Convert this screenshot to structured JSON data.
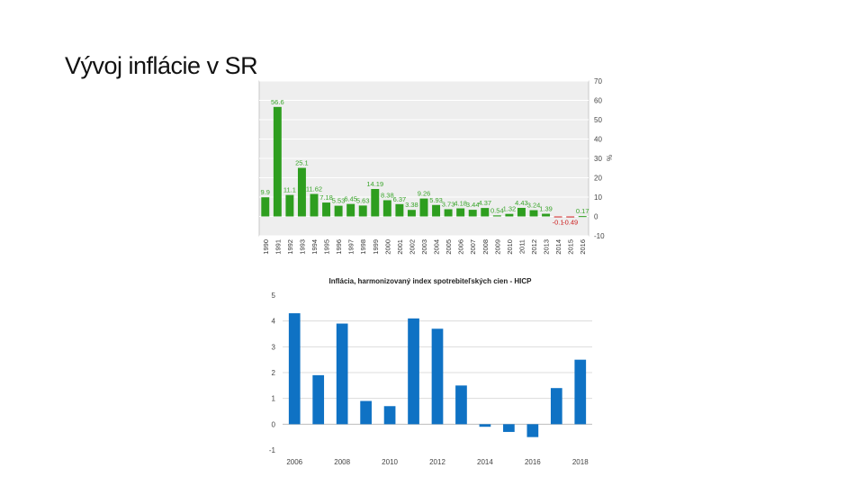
{
  "slide": {
    "title": "Vývoj inflácie v SR"
  },
  "chart_data": [
    {
      "type": "bar",
      "ylabel": "%",
      "ylim": [
        -10,
        70
      ],
      "yticks": [
        70,
        60,
        50,
        40,
        30,
        20,
        10,
        0,
        -10
      ],
      "grid": true,
      "y_axis_side": "right",
      "colors": {
        "positive": "#2e9e1f",
        "negative": "#cc1f1f",
        "label_positive": "#3aa52b",
        "label_negative": "#cc1f1f",
        "plot_bg": "#eeeeee"
      },
      "categories": [
        "1990",
        "1991",
        "1992",
        "1993",
        "1994",
        "1995",
        "1996",
        "1997",
        "1998",
        "1999",
        "2000",
        "2001",
        "2002",
        "2003",
        "2004",
        "2005",
        "2006",
        "2007",
        "2008",
        "2009",
        "2010",
        "2011",
        "2012",
        "2013",
        "2014",
        "2015",
        "2016"
      ],
      "values": [
        9.9,
        56.6,
        11.1,
        25.1,
        11.62,
        7.18,
        5.53,
        6.45,
        5.63,
        14.19,
        8.38,
        6.37,
        3.38,
        9.26,
        5.93,
        3.73,
        4.18,
        3.44,
        4.37,
        0.54,
        1.32,
        4.43,
        3.24,
        1.39,
        -0.1,
        -0.49,
        0.17
      ],
      "labels": [
        "9.9",
        "56.6",
        "11.1",
        "25.1",
        "11.62",
        "7.18",
        "5.53",
        "6.45",
        "5.63",
        "14.19",
        "8.38",
        "6.37",
        "3.38",
        "9.26",
        "5.93",
        "3.73",
        "4.18",
        "3.44",
        "4.37",
        "0.54",
        "1.32",
        "4.43",
        "3.24",
        "1.39",
        "-0.1",
        "-0.49",
        "0.17"
      ]
    },
    {
      "type": "bar",
      "title": "Inflácia, harmonizovaný index spotrebiteľských cien - HICP",
      "ylim": [
        -1,
        5
      ],
      "yticks": [
        5,
        4,
        3,
        2,
        1,
        0,
        -1
      ],
      "ytick_labels": [
        "5",
        "4",
        "3",
        "2",
        "1",
        "0",
        "-1"
      ],
      "grid": true,
      "colors": {
        "bar": "#0f72c4"
      },
      "x": [
        2006,
        2007,
        2008,
        2009,
        2010,
        2011,
        2012,
        2013,
        2014,
        2015,
        2016,
        2017,
        2018
      ],
      "values": [
        4.3,
        1.9,
        3.9,
        0.9,
        0.7,
        4.1,
        3.7,
        1.5,
        -0.1,
        -0.3,
        -0.5,
        1.4,
        2.5
      ],
      "xtick_labels": [
        "2006",
        "2008",
        "2010",
        "2012",
        "2014",
        "2016",
        "2018"
      ]
    }
  ]
}
